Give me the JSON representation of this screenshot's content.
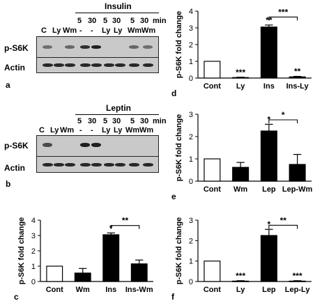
{
  "panel_a": {
    "letter": "a",
    "treatment": "Insulin",
    "time_labels": [
      "5",
      "30",
      "5",
      "30",
      "5",
      "30"
    ],
    "unit": "min",
    "lane_labels": [
      "C",
      "Ly",
      "Wm",
      "-",
      "-",
      "Ly",
      "Ly",
      "Wm",
      "Wm"
    ],
    "rows": [
      "p-S6K",
      "Actin"
    ],
    "pS6K_band_intensity": [
      0.5,
      0,
      0.55,
      0.85,
      0.95,
      0,
      0,
      0.55,
      0.5
    ],
    "actin_band_intensity": [
      0.9,
      0.9,
      0.9,
      0.9,
      0.9,
      0.9,
      0.9,
      0.9,
      0.9
    ]
  },
  "panel_b": {
    "letter": "b",
    "treatment": "Leptin",
    "time_labels": [
      "5",
      "30",
      "5",
      "30",
      "5",
      "30"
    ],
    "unit": "min",
    "lane_labels": [
      "C",
      "Ly",
      "Wm",
      "-",
      "-",
      "Ly",
      "Ly",
      "Wm",
      "Wm"
    ],
    "rows": [
      "p-S6K",
      "Actin"
    ],
    "pS6K_band_intensity": [
      0.7,
      0,
      0,
      0.95,
      0.95,
      0,
      0,
      0,
      0
    ],
    "actin_band_intensity": [
      0.9,
      0.9,
      0.9,
      0.9,
      0.9,
      0.9,
      0.9,
      0.9,
      0.9
    ]
  },
  "chart_data": [
    {
      "id": "c",
      "letter": "c",
      "type": "bar",
      "categories": [
        "Cont",
        "Wm",
        "Ins",
        "Ins-Wm"
      ],
      "values": [
        1.0,
        0.55,
        3.05,
        1.15
      ],
      "errors": [
        0,
        0.3,
        0.12,
        0.25
      ],
      "fills": [
        "#ffffff",
        "#000000",
        "#000000",
        "#000000"
      ],
      "ylabel": "p-S6K fold change",
      "ylim": [
        0,
        4
      ],
      "yticks": [
        0,
        1,
        2,
        3,
        4
      ],
      "stars": [
        "",
        "",
        "*",
        ""
      ],
      "bracket": {
        "from": 2,
        "to": 3,
        "label": "**",
        "y": 3.65
      }
    },
    {
      "id": "d",
      "letter": "d",
      "type": "bar",
      "categories": [
        "Cont",
        "Ly",
        "Ins",
        "Ins-Ly"
      ],
      "values": [
        1.0,
        0.03,
        3.05,
        0.07
      ],
      "errors": [
        0,
        0.02,
        0.12,
        0.03
      ],
      "fills": [
        "#ffffff",
        "#000000",
        "#000000",
        "#000000"
      ],
      "ylabel": "p-S6K fold change",
      "ylim": [
        0,
        4
      ],
      "yticks": [
        0,
        1,
        2,
        3,
        4
      ],
      "stars": [
        "",
        "***",
        "**",
        "**"
      ],
      "bracket": {
        "from": 2,
        "to": 3,
        "label": "***",
        "y": 3.65
      }
    },
    {
      "id": "e",
      "letter": "e",
      "type": "bar",
      "categories": [
        "Cont",
        "Wm",
        "Lep",
        "Lep-Wm"
      ],
      "values": [
        1.0,
        0.62,
        2.25,
        0.75
      ],
      "errors": [
        0,
        0.22,
        0.3,
        0.45
      ],
      "fills": [
        "#ffffff",
        "#000000",
        "#000000",
        "#000000"
      ],
      "ylabel": "p-S6K fold change",
      "ylim": [
        0,
        3
      ],
      "yticks": [
        0,
        1,
        2,
        3
      ],
      "stars": [
        "",
        "",
        "*",
        ""
      ],
      "bracket": {
        "from": 2,
        "to": 3,
        "label": "*",
        "y": 2.75
      }
    },
    {
      "id": "f",
      "letter": "f",
      "type": "bar",
      "categories": [
        "Cont",
        "Ly",
        "Lep",
        "Lep-Ly"
      ],
      "values": [
        1.0,
        0.02,
        2.25,
        0.02
      ],
      "errors": [
        0,
        0.02,
        0.3,
        0.02
      ],
      "fills": [
        "#ffffff",
        "#000000",
        "#000000",
        "#000000"
      ],
      "ylabel": "p-S6K fold change",
      "ylim": [
        0,
        3
      ],
      "yticks": [
        0,
        1,
        2,
        3
      ],
      "stars": [
        "",
        "***",
        "*",
        "***"
      ],
      "bracket": {
        "from": 2,
        "to": 3,
        "label": "**",
        "y": 2.75
      }
    }
  ]
}
